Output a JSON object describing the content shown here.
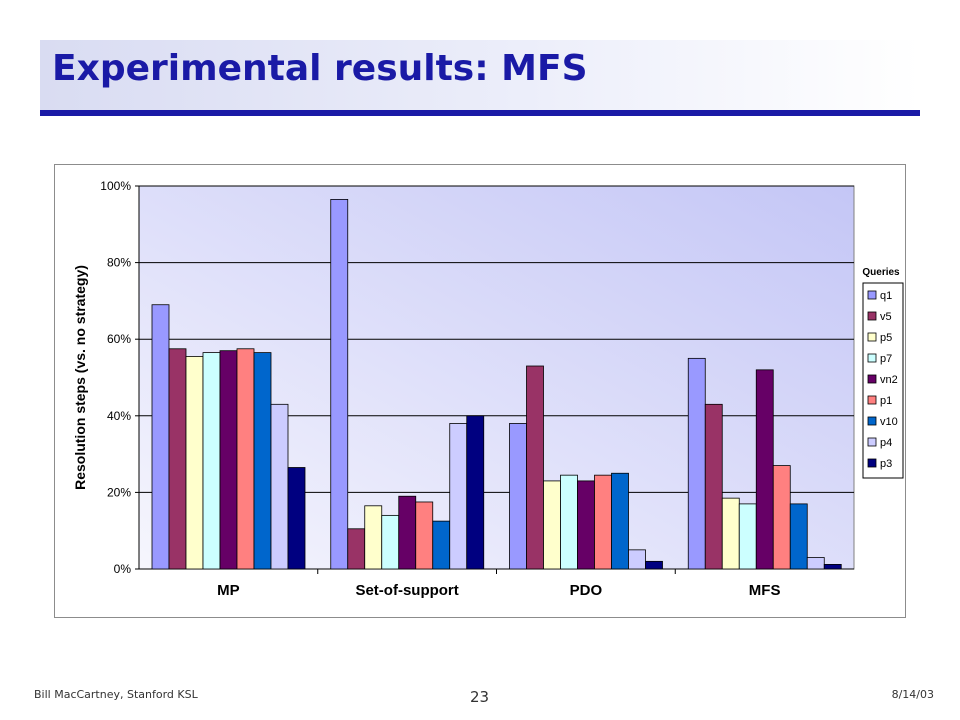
{
  "slide": {
    "title": "Experimental results: MFS",
    "footer_left": "Bill MacCartney, Stanford KSL",
    "page_number": "23",
    "footer_right": "8/14/03"
  },
  "chart_data": {
    "type": "bar",
    "title": "",
    "xlabel": "",
    "ylabel": "Resolution steps (vs. no strategy)",
    "ylim": [
      0,
      100
    ],
    "yticks": [
      0,
      20,
      40,
      60,
      80,
      100
    ],
    "ytick_labels": [
      "0%",
      "20%",
      "40%",
      "60%",
      "80%",
      "100%"
    ],
    "grid": true,
    "legend_title": "Queries",
    "legend_position": "right",
    "categories": [
      "MP",
      "Set-of-support",
      "PDO",
      "MFS"
    ],
    "series": [
      {
        "name": "q1",
        "color": "#9999ff",
        "values": [
          69,
          96.5,
          38,
          55
        ]
      },
      {
        "name": "v5",
        "color": "#993366",
        "values": [
          57.5,
          10.5,
          53,
          43
        ]
      },
      {
        "name": "p5",
        "color": "#ffffcc",
        "values": [
          55.5,
          16.5,
          23,
          18.5
        ]
      },
      {
        "name": "p7",
        "color": "#ccffff",
        "values": [
          56.5,
          14,
          24.5,
          17
        ]
      },
      {
        "name": "vn2",
        "color": "#660066",
        "values": [
          57,
          19,
          23,
          52
        ]
      },
      {
        "name": "p1",
        "color": "#ff8080",
        "values": [
          57.5,
          17.5,
          24.5,
          27
        ]
      },
      {
        "name": "v10",
        "color": "#0066cc",
        "values": [
          56.5,
          12.5,
          25,
          17
        ]
      },
      {
        "name": "p4",
        "color": "#ccccff",
        "values": [
          43,
          38,
          5,
          3
        ]
      },
      {
        "name": "p3",
        "color": "#000080",
        "values": [
          26.5,
          40,
          2,
          1.2
        ]
      }
    ]
  }
}
